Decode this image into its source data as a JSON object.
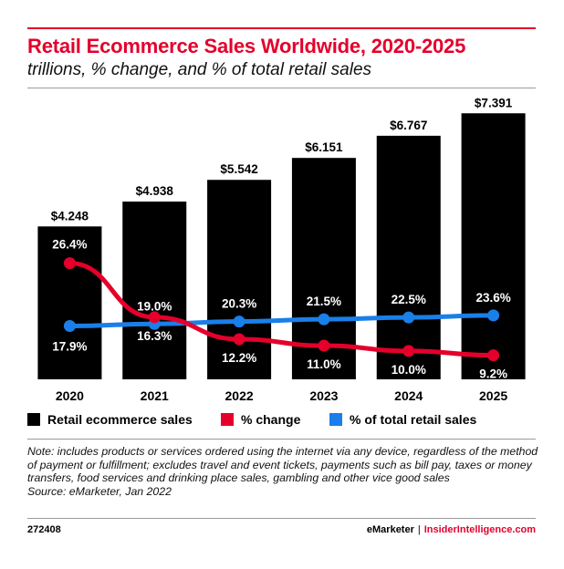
{
  "chart_data": {
    "type": "bar",
    "title": "Retail Ecommerce Sales Worldwide, 2020-2025",
    "subtitle": "trillions, % change, and % of total retail sales",
    "categories": [
      "2020",
      "2021",
      "2022",
      "2023",
      "2024",
      "2025"
    ],
    "series": [
      {
        "name": "Retail ecommerce sales",
        "type": "bar",
        "values": [
          4.248,
          4.938,
          5.542,
          6.151,
          6.767,
          7.391
        ],
        "labels": [
          "$4.248",
          "$4.938",
          "$5.542",
          "$6.151",
          "$6.767",
          "$7.391"
        ],
        "color": "#000000"
      },
      {
        "name": "% change",
        "type": "line",
        "values": [
          26.4,
          16.3,
          12.2,
          11.0,
          10.0,
          9.2
        ],
        "labels": [
          "26.4%",
          "16.3%",
          "12.2%",
          "11.0%",
          "10.0%",
          "9.2%"
        ],
        "color": "#e4002b"
      },
      {
        "name": "% of total retail sales",
        "type": "line",
        "values": [
          17.9,
          19.0,
          20.3,
          21.5,
          22.5,
          23.6
        ],
        "labels": [
          "17.9%",
          "19.0%",
          "20.3%",
          "21.5%",
          "22.5%",
          "23.6%"
        ],
        "color": "#1a7fe8"
      }
    ],
    "legend_position": "bottom",
    "grid": false
  },
  "note": "Note: includes products or services ordered using the internet via any device, regardless of the method of payment or fulfillment; excludes travel and event tickets, payments such as bill pay, taxes or money transfers, food services and drinking place sales, gambling and other vice good sales",
  "source": "Source: eMarketer, Jan 2022",
  "footer": {
    "chart_id": "272408",
    "brand_1": "eMarketer",
    "separator": "|",
    "brand_2": "InsiderIntelligence.com"
  }
}
